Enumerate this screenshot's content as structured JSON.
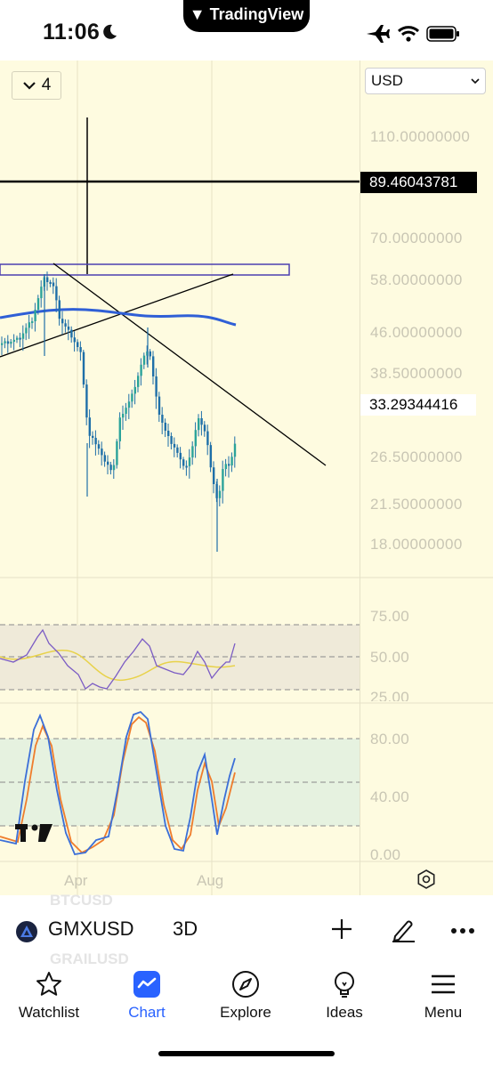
{
  "status_bar": {
    "time": "11:06",
    "notch_brand": "TradingView"
  },
  "chart": {
    "interval_count": "4",
    "currency": "USD",
    "price_labels": [
      "110.00000000",
      "70.00000000",
      "58.00000000",
      "46.00000000",
      "38.50000000",
      "26.50000000",
      "21.50000000",
      "18.00000000"
    ],
    "crosshair_price": "89.46043781",
    "last_price": "33.29344416",
    "rsi_labels": [
      "75.00",
      "50.00",
      "25.00"
    ],
    "stoch_labels": [
      "80.00",
      "40.00",
      "0.00"
    ],
    "time_labels": [
      "Apr",
      "Aug"
    ]
  },
  "symbol_bar": {
    "symbol": "GMXUSD",
    "interval": "3D",
    "ghost_above": "BTCUSD",
    "ghost_below": "GRAILUSD"
  },
  "tabs": [
    {
      "label": "Watchlist",
      "icon": "star-icon"
    },
    {
      "label": "Chart",
      "icon": "chart-icon"
    },
    {
      "label": "Explore",
      "icon": "compass-icon"
    },
    {
      "label": "Ideas",
      "icon": "lightbulb-icon"
    },
    {
      "label": "Menu",
      "icon": "menu-icon"
    }
  ],
  "colors": {
    "accent": "#2962ff",
    "chart_bg": "#fefbe0",
    "candle": "#1e6fa8",
    "ma": "#2f5fd6",
    "rsi": "#7b5cc4",
    "rsi_ma": "#e8d24a",
    "stoch_k": "#3b6fd8",
    "stoch_d": "#ef7d2c"
  }
}
